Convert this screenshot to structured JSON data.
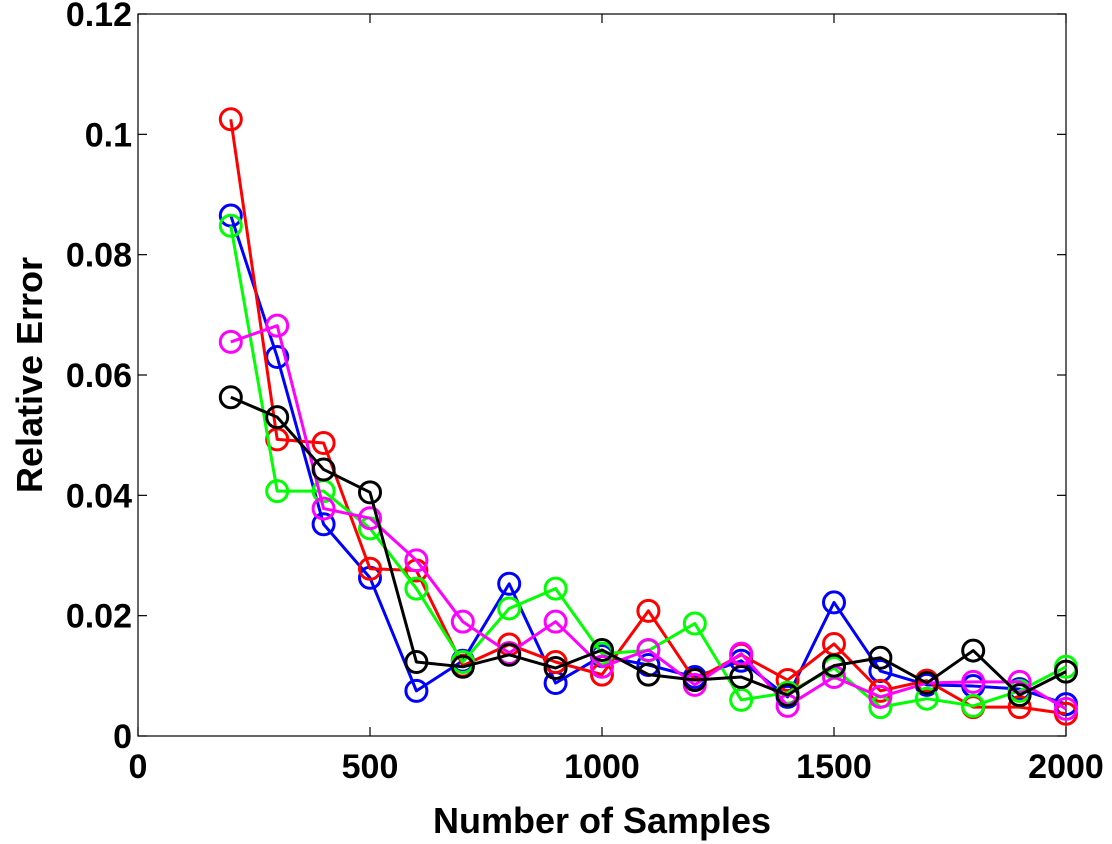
{
  "chart_data": {
    "type": "line",
    "title": "",
    "xlabel": "Number of Samples",
    "ylabel": "Relative Error",
    "xlim": [
      0,
      2000
    ],
    "ylim": [
      0,
      0.12
    ],
    "grid": false,
    "marker": "circle",
    "x_ticks": [
      0,
      500,
      1000,
      1500,
      2000
    ],
    "x_tick_labels": [
      "0",
      "500",
      "1000",
      "1500",
      "2000"
    ],
    "y_ticks": [
      0,
      0.02,
      0.04,
      0.06,
      0.08,
      0.1,
      0.12
    ],
    "y_tick_labels": [
      "0",
      "0.02",
      "0.04",
      "0.06",
      "0.08",
      "0.1",
      "0.12"
    ],
    "x": [
      200,
      300,
      400,
      500,
      600,
      700,
      800,
      900,
      1000,
      1100,
      1200,
      1300,
      1400,
      1500,
      1600,
      1700,
      1800,
      1900,
      2000
    ],
    "series": [
      {
        "name": "blue",
        "color": "#0000ff",
        "values": [
          0.0865,
          0.063,
          0.0352,
          0.0263,
          0.0075,
          0.0125,
          0.0253,
          0.0088,
          0.0133,
          0.0118,
          0.0098,
          0.0125,
          0.0065,
          0.0222,
          0.0108,
          0.0085,
          0.0083,
          0.0078,
          0.0053
        ]
      },
      {
        "name": "red",
        "color": "#ff0000",
        "values": [
          0.1025,
          0.0493,
          0.0487,
          0.0278,
          0.0275,
          0.0117,
          0.0152,
          0.0123,
          0.0102,
          0.0208,
          0.0093,
          0.0135,
          0.0093,
          0.0153,
          0.0075,
          0.0092,
          0.0048,
          0.0048,
          0.0037
        ]
      },
      {
        "name": "green",
        "color": "#00ff00",
        "values": [
          0.0848,
          0.0407,
          0.0407,
          0.0345,
          0.0245,
          0.0123,
          0.0212,
          0.0245,
          0.0137,
          0.0142,
          0.0187,
          0.006,
          0.0072,
          0.0113,
          0.0048,
          0.0062,
          0.005,
          0.0075,
          0.0115
        ]
      },
      {
        "name": "magenta",
        "color": "#ff00ff",
        "values": [
          0.0655,
          0.0682,
          0.0378,
          0.0362,
          0.0292,
          0.019,
          0.0138,
          0.019,
          0.0115,
          0.0143,
          0.0085,
          0.0137,
          0.005,
          0.0098,
          0.0065,
          0.0088,
          0.009,
          0.009,
          0.0045
        ]
      },
      {
        "name": "black",
        "color": "#000000",
        "values": [
          0.0563,
          0.053,
          0.0443,
          0.0405,
          0.0123,
          0.0115,
          0.0135,
          0.0113,
          0.0143,
          0.0102,
          0.0093,
          0.0098,
          0.0068,
          0.0117,
          0.013,
          0.0088,
          0.0142,
          0.0068,
          0.0107
        ]
      }
    ]
  }
}
